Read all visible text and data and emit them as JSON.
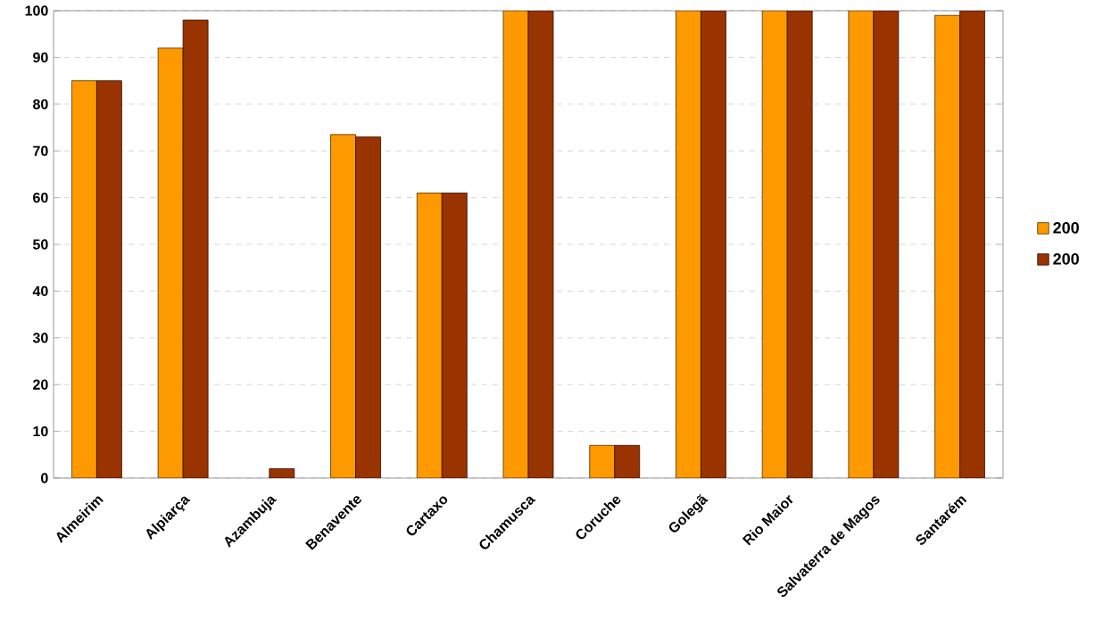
{
  "chart_data": {
    "type": "bar",
    "categories": [
      "Almeirim",
      "Alpiarça",
      "Azambuja",
      "Benavente",
      "Cartaxo",
      "Chamusca",
      "Coruche",
      "Golegã",
      "Rio Maior",
      "Salvaterra de Magos",
      "Santarém"
    ],
    "series": [
      {
        "name": "200",
        "color": "#ff9900",
        "values": [
          85,
          92,
          null,
          73.5,
          61,
          100,
          7,
          100,
          100,
          100,
          99
        ]
      },
      {
        "name": "200",
        "color": "#993300",
        "values": [
          85,
          98,
          2,
          73,
          61,
          100,
          7,
          100,
          100,
          100,
          100
        ]
      }
    ],
    "ylim": [
      0,
      100
    ],
    "yticks": [
      0,
      10,
      20,
      30,
      40,
      50,
      60,
      70,
      80,
      90,
      100
    ],
    "grid": "y",
    "legend": "right"
  }
}
